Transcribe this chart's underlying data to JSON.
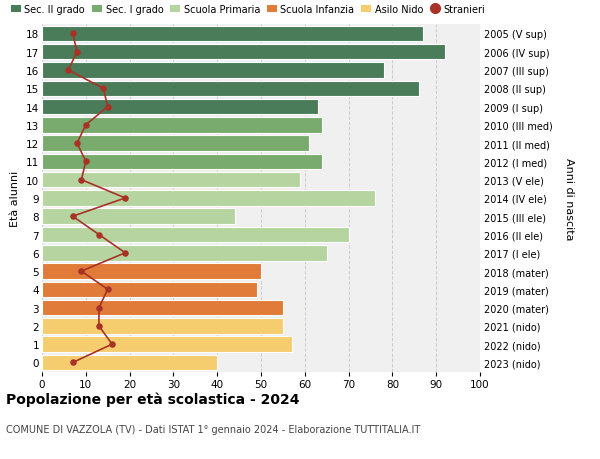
{
  "ages": [
    18,
    17,
    16,
    15,
    14,
    13,
    12,
    11,
    10,
    9,
    8,
    7,
    6,
    5,
    4,
    3,
    2,
    1,
    0
  ],
  "right_labels": [
    "2005 (V sup)",
    "2006 (IV sup)",
    "2007 (III sup)",
    "2008 (II sup)",
    "2009 (I sup)",
    "2010 (III med)",
    "2011 (II med)",
    "2012 (I med)",
    "2013 (V ele)",
    "2014 (IV ele)",
    "2015 (III ele)",
    "2016 (II ele)",
    "2017 (I ele)",
    "2018 (mater)",
    "2019 (mater)",
    "2020 (mater)",
    "2021 (nido)",
    "2022 (nido)",
    "2023 (nido)"
  ],
  "bar_values": [
    87,
    92,
    78,
    86,
    63,
    64,
    61,
    64,
    59,
    76,
    44,
    70,
    65,
    50,
    49,
    55,
    55,
    57,
    40
  ],
  "bar_colors": [
    "#4a7c59",
    "#4a7c59",
    "#4a7c59",
    "#4a7c59",
    "#4a7c59",
    "#7aab6e",
    "#7aab6e",
    "#7aab6e",
    "#b5d4a0",
    "#b5d4a0",
    "#b5d4a0",
    "#b5d4a0",
    "#b5d4a0",
    "#e07b39",
    "#e07b39",
    "#e07b39",
    "#f5cc6e",
    "#f5cc6e",
    "#f5cc6e"
  ],
  "stranieri_values": [
    7,
    8,
    6,
    14,
    15,
    10,
    8,
    10,
    9,
    19,
    7,
    13,
    19,
    9,
    15,
    13,
    13,
    16,
    7
  ],
  "legend_labels": [
    "Sec. II grado",
    "Sec. I grado",
    "Scuola Primaria",
    "Scuola Infanzia",
    "Asilo Nido",
    "Stranieri"
  ],
  "legend_colors": [
    "#4a7c59",
    "#7aab6e",
    "#b5d4a0",
    "#e07b39",
    "#f5cc6e",
    "#c0392b"
  ],
  "title": "Popolazione per età scolastica - 2024",
  "subtitle": "COMUNE DI VAZZOLA (TV) - Dati ISTAT 1° gennaio 2024 - Elaborazione TUTTITALIA.IT",
  "ylabel_left": "Età alunni",
  "ylabel_right": "Anni di nascita",
  "xlim": [
    0,
    100
  ],
  "xticks": [
    0,
    10,
    20,
    30,
    40,
    50,
    60,
    70,
    80,
    90,
    100
  ],
  "background_color": "#ffffff",
  "plot_bg_color": "#f0f0f0",
  "grid_color": "#cccccc",
  "bar_edge_color": "#ffffff",
  "stranieri_line_color": "#a93226",
  "stranieri_marker_color": "#a93226"
}
